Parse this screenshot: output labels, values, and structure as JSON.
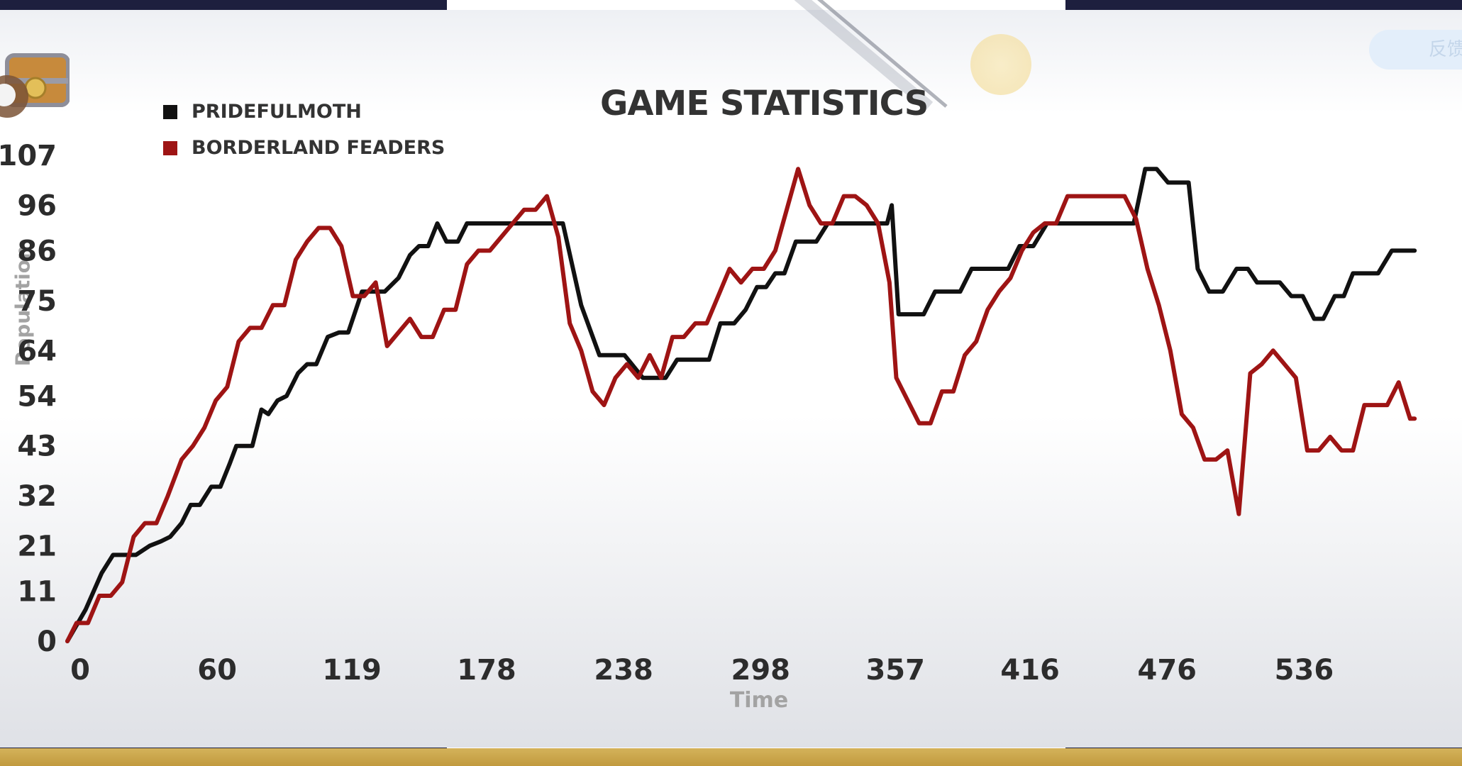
{
  "chart_data": {
    "type": "line",
    "title": "GAME STATISTICS",
    "xlabel": "Time",
    "ylabel": "Population",
    "xlim": [
      0,
      630
    ],
    "ylim": [
      0,
      107
    ],
    "x_ticks": [
      "0",
      "60",
      "119",
      "178",
      "238",
      "298",
      "357",
      "416",
      "476",
      "536"
    ],
    "y_ticks": [
      "0",
      "11",
      "21",
      "32",
      "43",
      "54",
      "64",
      "75",
      "86",
      "96",
      "107"
    ],
    "legend_position": "top-left",
    "series": [
      {
        "name": "PRIDEFULMOTH",
        "color": "#111111",
        "points": [
          [
            0,
            0
          ],
          [
            8,
            7
          ],
          [
            15,
            15
          ],
          [
            20,
            19
          ],
          [
            30,
            19
          ],
          [
            36,
            21
          ],
          [
            41,
            22
          ],
          [
            45,
            23
          ],
          [
            50,
            26
          ],
          [
            54,
            30
          ],
          [
            58,
            30
          ],
          [
            63,
            34
          ],
          [
            67,
            34
          ],
          [
            71,
            39
          ],
          [
            74,
            43
          ],
          [
            81,
            43
          ],
          [
            85,
            51
          ],
          [
            88,
            50
          ],
          [
            92,
            53
          ],
          [
            96,
            54
          ],
          [
            101,
            59
          ],
          [
            105,
            61
          ],
          [
            109,
            61
          ],
          [
            114,
            67
          ],
          [
            119,
            68
          ],
          [
            123,
            68
          ],
          [
            129,
            77
          ],
          [
            139,
            77
          ],
          [
            145,
            80
          ],
          [
            150,
            85
          ],
          [
            154,
            87
          ],
          [
            158,
            87
          ],
          [
            162,
            92
          ],
          [
            166,
            88
          ],
          [
            171,
            88
          ],
          [
            175,
            92
          ],
          [
            217,
            92
          ],
          [
            225,
            74
          ],
          [
            233,
            63
          ],
          [
            244,
            63
          ],
          [
            252,
            58
          ],
          [
            262,
            58
          ],
          [
            267,
            62
          ],
          [
            281,
            62
          ],
          [
            286,
            70
          ],
          [
            292,
            70
          ],
          [
            297,
            73
          ],
          [
            302,
            78
          ],
          [
            306,
            78
          ],
          [
            310,
            81
          ],
          [
            314,
            81
          ],
          [
            319,
            88
          ],
          [
            328,
            88
          ],
          [
            333,
            92
          ],
          [
            359,
            92
          ],
          [
            361,
            96
          ],
          [
            364,
            72
          ],
          [
            375,
            72
          ],
          [
            380,
            77
          ],
          [
            391,
            77
          ],
          [
            396,
            82
          ],
          [
            412,
            82
          ],
          [
            417,
            87
          ],
          [
            423,
            87
          ],
          [
            429,
            92
          ],
          [
            467,
            92
          ],
          [
            472,
            104
          ],
          [
            477,
            104
          ],
          [
            482,
            101
          ],
          [
            491,
            101
          ],
          [
            495,
            82
          ],
          [
            500,
            77
          ],
          [
            506,
            77
          ],
          [
            512,
            82
          ],
          [
            517,
            82
          ],
          [
            521,
            79
          ],
          [
            531,
            79
          ],
          [
            536,
            76
          ],
          [
            541,
            76
          ],
          [
            546,
            71
          ],
          [
            550,
            71
          ],
          [
            555,
            76
          ],
          [
            559,
            76
          ],
          [
            563,
            81
          ],
          [
            574,
            81
          ],
          [
            580,
            86
          ],
          [
            590,
            86
          ]
        ]
      },
      {
        "name": "BORDERLAND FEADERS",
        "color": "#9e1414",
        "points": [
          [
            0,
            0
          ],
          [
            4,
            4
          ],
          [
            9,
            4
          ],
          [
            14,
            10
          ],
          [
            19,
            10
          ],
          [
            24,
            13
          ],
          [
            29,
            23
          ],
          [
            34,
            26
          ],
          [
            39,
            26
          ],
          [
            44,
            32
          ],
          [
            50,
            40
          ],
          [
            55,
            43
          ],
          [
            60,
            47
          ],
          [
            65,
            53
          ],
          [
            70,
            56
          ],
          [
            75,
            66
          ],
          [
            80,
            69
          ],
          [
            85,
            69
          ],
          [
            90,
            74
          ],
          [
            95,
            74
          ],
          [
            100,
            84
          ],
          [
            105,
            88
          ],
          [
            110,
            91
          ],
          [
            115,
            91
          ],
          [
            120,
            87
          ],
          [
            125,
            76
          ],
          [
            130,
            76
          ],
          [
            135,
            79
          ],
          [
            140,
            65
          ],
          [
            145,
            68
          ],
          [
            150,
            71
          ],
          [
            155,
            67
          ],
          [
            160,
            67
          ],
          [
            165,
            73
          ],
          [
            170,
            73
          ],
          [
            175,
            83
          ],
          [
            180,
            86
          ],
          [
            185,
            86
          ],
          [
            190,
            89
          ],
          [
            195,
            92
          ],
          [
            200,
            95
          ],
          [
            205,
            95
          ],
          [
            210,
            98
          ],
          [
            215,
            89
          ],
          [
            220,
            70
          ],
          [
            225,
            64
          ],
          [
            230,
            55
          ],
          [
            235,
            52
          ],
          [
            240,
            58
          ],
          [
            245,
            61
          ],
          [
            250,
            58
          ],
          [
            255,
            63
          ],
          [
            260,
            58
          ],
          [
            265,
            67
          ],
          [
            270,
            67
          ],
          [
            275,
            70
          ],
          [
            280,
            70
          ],
          [
            285,
            76
          ],
          [
            290,
            82
          ],
          [
            295,
            79
          ],
          [
            300,
            82
          ],
          [
            305,
            82
          ],
          [
            310,
            86
          ],
          [
            315,
            95
          ],
          [
            320,
            104
          ],
          [
            325,
            96
          ],
          [
            330,
            92
          ],
          [
            335,
            92
          ],
          [
            340,
            98
          ],
          [
            345,
            98
          ],
          [
            350,
            96
          ],
          [
            355,
            92
          ],
          [
            360,
            79
          ],
          [
            363,
            58
          ],
          [
            368,
            53
          ],
          [
            373,
            48
          ],
          [
            378,
            48
          ],
          [
            383,
            55
          ],
          [
            388,
            55
          ],
          [
            393,
            63
          ],
          [
            398,
            66
          ],
          [
            403,
            73
          ],
          [
            408,
            77
          ],
          [
            413,
            80
          ],
          [
            418,
            86
          ],
          [
            423,
            90
          ],
          [
            428,
            92
          ],
          [
            433,
            92
          ],
          [
            438,
            98
          ],
          [
            463,
            98
          ],
          [
            468,
            93
          ],
          [
            473,
            82
          ],
          [
            478,
            74
          ],
          [
            483,
            64
          ],
          [
            488,
            50
          ],
          [
            493,
            47
          ],
          [
            498,
            40
          ],
          [
            503,
            40
          ],
          [
            508,
            42
          ],
          [
            513,
            28
          ],
          [
            518,
            59
          ],
          [
            523,
            61
          ],
          [
            528,
            64
          ],
          [
            533,
            61
          ],
          [
            538,
            58
          ],
          [
            543,
            42
          ],
          [
            548,
            42
          ],
          [
            553,
            45
          ],
          [
            558,
            42
          ],
          [
            563,
            42
          ],
          [
            568,
            52
          ],
          [
            573,
            52
          ],
          [
            578,
            52
          ],
          [
            583,
            57
          ],
          [
            588,
            49
          ],
          [
            590,
            49
          ]
        ]
      }
    ]
  },
  "ui": {
    "feedback_label": "反馈"
  }
}
